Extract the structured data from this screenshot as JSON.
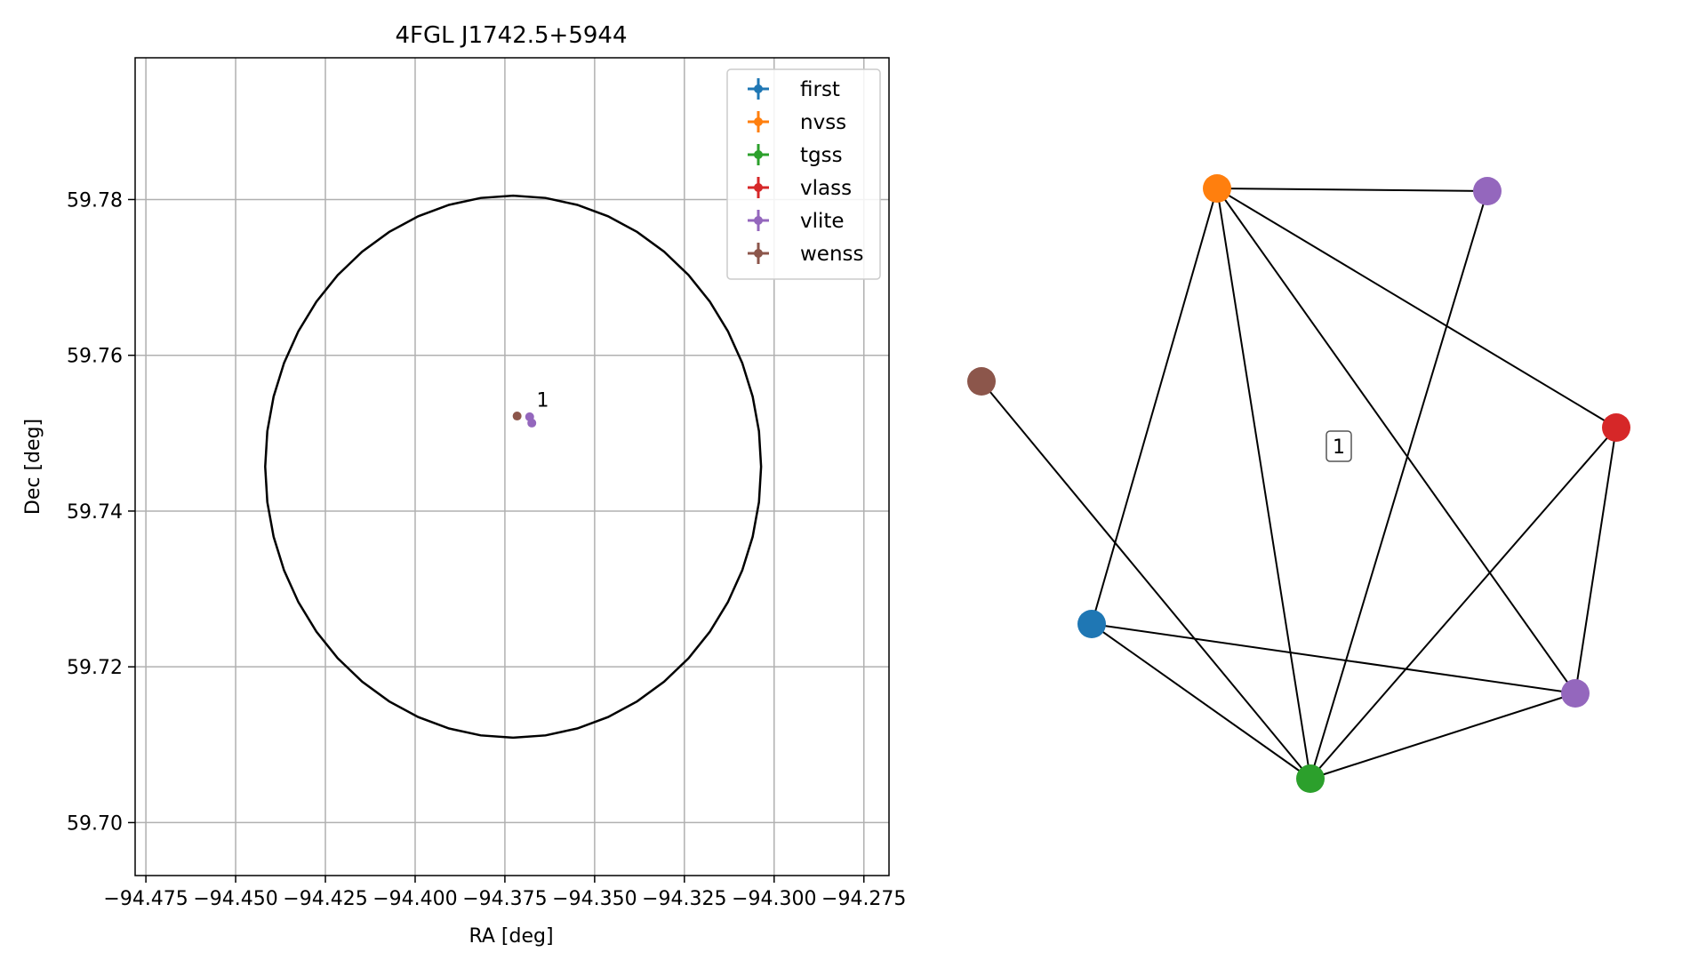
{
  "chart_data": [
    {
      "type": "scatter",
      "title": "4FGL J1742.5+5944",
      "xlabel": "RA [deg]",
      "ylabel": "Dec [deg]",
      "xlim": [
        -94.478,
        -94.268
      ],
      "ylim": [
        59.6932,
        59.7982
      ],
      "xticks": [
        -94.475,
        -94.45,
        -94.425,
        -94.4,
        -94.375,
        -94.35,
        -94.325,
        -94.3,
        -94.275
      ],
      "xtick_labels": [
        "−94.475",
        "−94.450",
        "−94.425",
        "−94.400",
        "−94.375",
        "−94.350",
        "−94.325",
        "−94.300",
        "−94.275"
      ],
      "yticks": [
        59.7,
        59.72,
        59.74,
        59.76,
        59.78
      ],
      "ytick_labels": [
        "59.70",
        "59.72",
        "59.74",
        "59.76",
        "59.78"
      ],
      "grid": true,
      "legend_position": "top-right",
      "ellipse": {
        "center": [
          -94.3727,
          59.7457
        ],
        "semi_axes_deg": [
          0.0623,
          0.0348
        ],
        "color": "#000000"
      },
      "series": [
        {
          "name": "first",
          "color": "#1f77b4",
          "points": []
        },
        {
          "name": "nvss",
          "color": "#ff7f0e",
          "points": []
        },
        {
          "name": "tgss",
          "color": "#2ca02c",
          "points": []
        },
        {
          "name": "vlass",
          "color": "#d62728",
          "points": []
        },
        {
          "name": "vlite",
          "color": "#9467bd",
          "points": [
            [
              -94.3681,
              59.7521
            ],
            [
              -94.3675,
              59.7513
            ]
          ]
        },
        {
          "name": "wenss",
          "color": "#8c564b",
          "points": [
            [
              -94.3716,
              59.7522
            ]
          ]
        }
      ],
      "annotations": [
        {
          "text": "1",
          "x": -94.3662,
          "y": 59.7534
        }
      ]
    },
    {
      "type": "network",
      "cluster_label": "1",
      "nodes": [
        {
          "id": "first",
          "color": "#1f77b4"
        },
        {
          "id": "nvss",
          "color": "#ff7f0e"
        },
        {
          "id": "tgss",
          "color": "#2ca02c"
        },
        {
          "id": "vlass",
          "color": "#d62728"
        },
        {
          "id": "vlite-a",
          "color": "#9467bd"
        },
        {
          "id": "vlite-b",
          "color": "#9467bd"
        },
        {
          "id": "wenss",
          "color": "#8c564b"
        }
      ],
      "edges": [
        [
          "nvss",
          "vlite-a"
        ],
        [
          "nvss",
          "first"
        ],
        [
          "nvss",
          "tgss"
        ],
        [
          "nvss",
          "vlass"
        ],
        [
          "nvss",
          "vlite-b"
        ],
        [
          "vlite-a",
          "tgss"
        ],
        [
          "wenss",
          "tgss"
        ],
        [
          "first",
          "tgss"
        ],
        [
          "first",
          "vlite-b"
        ],
        [
          "vlass",
          "tgss"
        ],
        [
          "vlass",
          "vlite-b"
        ],
        [
          "tgss",
          "vlite-b"
        ]
      ]
    }
  ]
}
